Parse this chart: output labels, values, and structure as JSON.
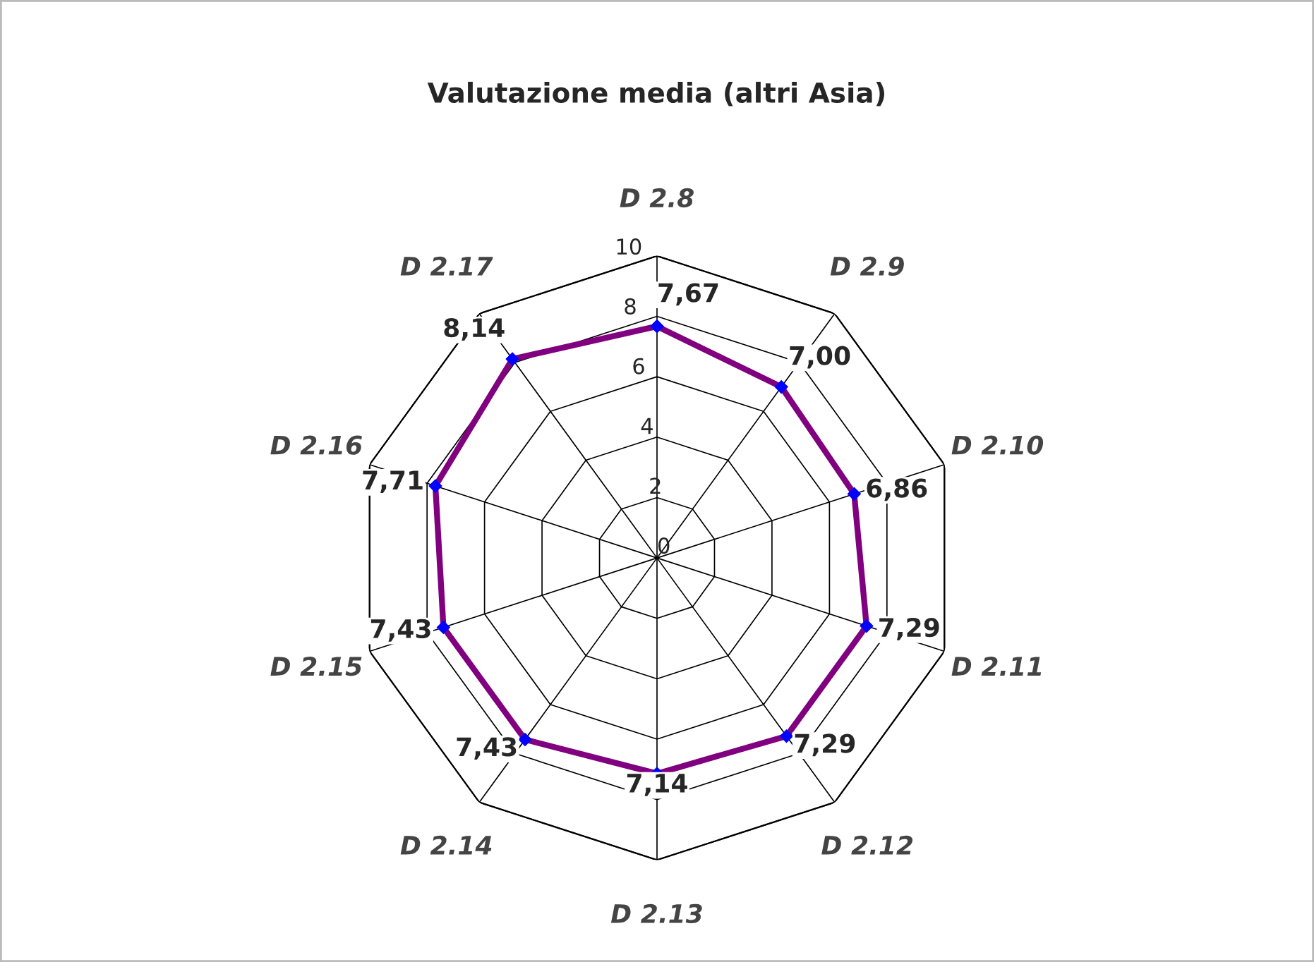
{
  "chart_data": {
    "type": "radar",
    "title": "Valutazione media (altri Asia)",
    "categories": [
      "D 2.8",
      "D 2.9",
      "D 2.10",
      "D 2.11",
      "D 2.12",
      "D 2.13",
      "D 2.14",
      "D 2.15",
      "D 2.16",
      "D 2.17"
    ],
    "series": [
      {
        "color": "#800080",
        "values": [
          7.67,
          7.0,
          6.86,
          7.29,
          7.29,
          7.14,
          7.43,
          7.43,
          7.71,
          8.14
        ],
        "value_labels": [
          "7,67",
          "7,00",
          "6,86",
          "7,29",
          "7,29",
          "7,14",
          "7,43",
          "7,43",
          "7,71",
          "8,14"
        ]
      }
    ],
    "ylim": [
      0,
      10
    ],
    "yticks": [
      0,
      2,
      4,
      6,
      8,
      10
    ],
    "grid": true,
    "marker": "diamond",
    "legend": false
  }
}
